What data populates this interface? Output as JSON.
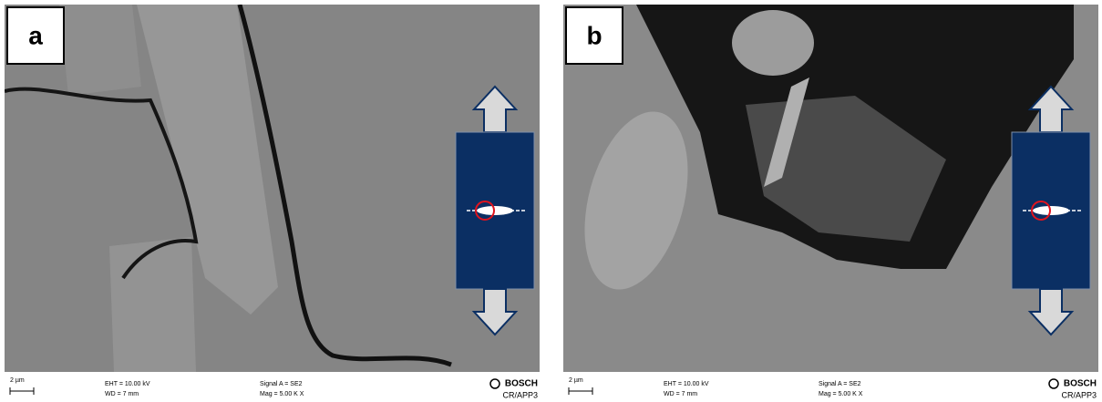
{
  "panels": [
    {
      "label": "a",
      "scale_bar": "2 µm",
      "eht": "EHT = 10.00 kV",
      "wd": "WD =  7 mm",
      "signal": "Signal A = SE2",
      "mag": "Mag =  5.00 K X",
      "brand": "BOSCH",
      "dept": "CR/APP3"
    },
    {
      "label": "b",
      "scale_bar": "2 µm",
      "eht": "EHT = 10.00 kV",
      "wd": "WD =  7 mm",
      "signal": "Signal A = SE2",
      "mag": "Mag =  5.00 K X",
      "brand": "BOSCH",
      "dept": "CR/APP3"
    }
  ]
}
